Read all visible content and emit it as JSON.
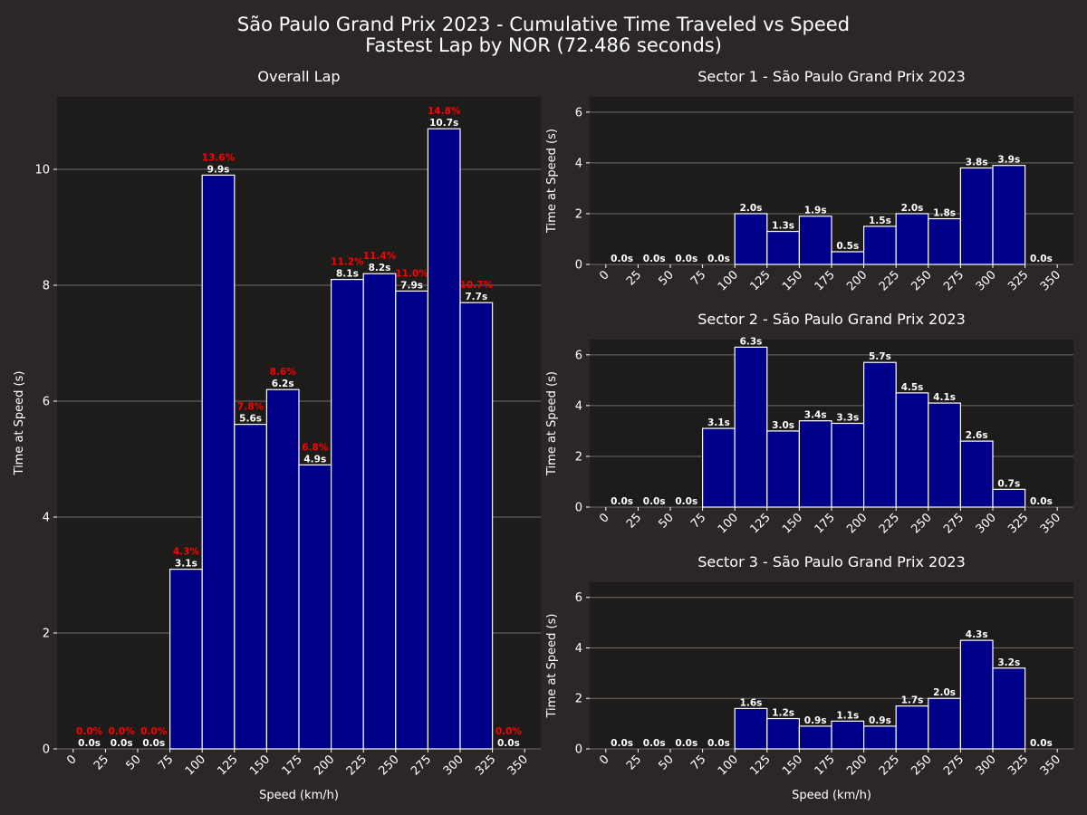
{
  "figure": {
    "title_line1": "São Paulo Grand Prix 2023 - Cumulative Time Traveled vs Speed",
    "title_line2": "Fastest Lap by NOR (72.486 seconds)"
  },
  "colors": {
    "figure_bg": "#2a2726",
    "axes_bg": "#1e1c1b",
    "bar_fill": "#00008b",
    "bar_edge": "#ffffff",
    "grid": "#6e6b69",
    "text": "#ffffff",
    "percent_label": "#ff0000"
  },
  "chart_data": [
    {
      "type": "bar",
      "title": "Overall Lap",
      "xlabel": "Speed (km/h)",
      "ylabel": "Time at Speed (s)",
      "bin_edges": [
        0,
        25,
        50,
        75,
        100,
        125,
        150,
        175,
        200,
        225,
        250,
        275,
        300,
        325,
        350
      ],
      "bins_start": [
        0,
        25,
        50,
        75,
        100,
        125,
        150,
        175,
        200,
        225,
        250,
        275,
        300,
        325
      ],
      "values": [
        0.0,
        0.0,
        0.0,
        3.1,
        9.9,
        5.6,
        6.2,
        4.9,
        8.1,
        8.2,
        7.9,
        10.7,
        7.7,
        0.0
      ],
      "value_labels": [
        "0.0s",
        "0.0s",
        "0.0s",
        "3.1s",
        "9.9s",
        "5.6s",
        "6.2s",
        "4.9s",
        "8.1s",
        "8.2s",
        "7.9s",
        "10.7s",
        "7.7s",
        "0.0s"
      ],
      "percent_labels": [
        "0.0%",
        "0.0%",
        "0.0%",
        "4.3%",
        "13.6%",
        "7.8%",
        "8.6%",
        "6.8%",
        "11.2%",
        "11.4%",
        "11.0%",
        "14.8%",
        "10.7%",
        "0.0%"
      ],
      "xticks": [
        "0",
        "25",
        "50",
        "75",
        "100",
        "125",
        "150",
        "175",
        "200",
        "225",
        "250",
        "275",
        "300",
        "325",
        "350"
      ],
      "yticks": [
        0,
        2,
        4,
        6,
        8,
        10
      ],
      "ytick_labels": [
        "0",
        "2",
        "4",
        "6",
        "8",
        "10"
      ],
      "xlim": [
        -12.5,
        362.5
      ],
      "ylim": [
        0,
        11.25
      ],
      "grid": "y"
    },
    {
      "type": "bar",
      "title": "Sector 1 - São Paulo Grand Prix 2023",
      "xlabel": "",
      "ylabel": "Time at Speed (s)",
      "bin_edges": [
        0,
        25,
        50,
        75,
        100,
        125,
        150,
        175,
        200,
        225,
        250,
        275,
        300,
        325,
        350
      ],
      "bins_start": [
        0,
        25,
        50,
        75,
        100,
        125,
        150,
        175,
        200,
        225,
        250,
        275,
        300,
        325
      ],
      "values": [
        0.0,
        0.0,
        0.0,
        0.0,
        2.0,
        1.3,
        1.9,
        0.5,
        1.5,
        2.0,
        1.8,
        3.8,
        3.9,
        0.0
      ],
      "value_labels": [
        "0.0s",
        "0.0s",
        "0.0s",
        "0.0s",
        "2.0s",
        "1.3s",
        "1.9s",
        "0.5s",
        "1.5s",
        "2.0s",
        "1.8s",
        "3.8s",
        "3.9s",
        "0.0s"
      ],
      "xticks": [
        "0",
        "25",
        "50",
        "75",
        "100",
        "125",
        "150",
        "175",
        "200",
        "225",
        "250",
        "275",
        "300",
        "325",
        "350"
      ],
      "yticks": [
        0,
        2,
        4,
        6
      ],
      "ytick_labels": [
        "0",
        "2",
        "4",
        "6"
      ],
      "xlim": [
        -12.5,
        362.5
      ],
      "ylim": [
        0,
        6.6
      ],
      "grid": "y"
    },
    {
      "type": "bar",
      "title": "Sector 2 - São Paulo Grand Prix 2023",
      "xlabel": "",
      "ylabel": "Time at Speed (s)",
      "bin_edges": [
        0,
        25,
        50,
        75,
        100,
        125,
        150,
        175,
        200,
        225,
        250,
        275,
        300,
        325,
        350
      ],
      "bins_start": [
        0,
        25,
        50,
        75,
        100,
        125,
        150,
        175,
        200,
        225,
        250,
        275,
        300,
        325
      ],
      "values": [
        0.0,
        0.0,
        0.0,
        3.1,
        6.3,
        3.0,
        3.4,
        3.3,
        5.7,
        4.5,
        4.1,
        2.6,
        0.7,
        0.0
      ],
      "value_labels": [
        "0.0s",
        "0.0s",
        "0.0s",
        "3.1s",
        "6.3s",
        "3.0s",
        "3.4s",
        "3.3s",
        "5.7s",
        "4.5s",
        "4.1s",
        "2.6s",
        "0.7s",
        "0.0s"
      ],
      "xticks": [
        "0",
        "25",
        "50",
        "75",
        "100",
        "125",
        "150",
        "175",
        "200",
        "225",
        "250",
        "275",
        "300",
        "325",
        "350"
      ],
      "yticks": [
        0,
        2,
        4,
        6
      ],
      "ytick_labels": [
        "0",
        "2",
        "4",
        "6"
      ],
      "xlim": [
        -12.5,
        362.5
      ],
      "ylim": [
        0,
        6.6
      ],
      "grid": "y"
    },
    {
      "type": "bar",
      "title": "Sector 3 - São Paulo Grand Prix 2023",
      "xlabel": "Speed (km/h)",
      "ylabel": "Time at Speed (s)",
      "bin_edges": [
        0,
        25,
        50,
        75,
        100,
        125,
        150,
        175,
        200,
        225,
        250,
        275,
        300,
        325,
        350
      ],
      "bins_start": [
        0,
        25,
        50,
        75,
        100,
        125,
        150,
        175,
        200,
        225,
        250,
        275,
        300,
        325
      ],
      "values": [
        0.0,
        0.0,
        0.0,
        0.0,
        1.6,
        1.2,
        0.9,
        1.1,
        0.9,
        1.7,
        2.0,
        4.3,
        3.2,
        0.0
      ],
      "value_labels": [
        "0.0s",
        "0.0s",
        "0.0s",
        "0.0s",
        "1.6s",
        "1.2s",
        "0.9s",
        "1.1s",
        "0.9s",
        "1.7s",
        "2.0s",
        "4.3s",
        "3.2s",
        "0.0s"
      ],
      "xticks": [
        "0",
        "25",
        "50",
        "75",
        "100",
        "125",
        "150",
        "175",
        "200",
        "225",
        "250",
        "275",
        "300",
        "325",
        "350"
      ],
      "yticks": [
        0,
        2,
        4,
        6
      ],
      "ytick_labels": [
        "0",
        "2",
        "4",
        "6"
      ],
      "xlim": [
        -12.5,
        362.5
      ],
      "ylim": [
        0,
        6.6
      ],
      "grid": "y"
    }
  ]
}
